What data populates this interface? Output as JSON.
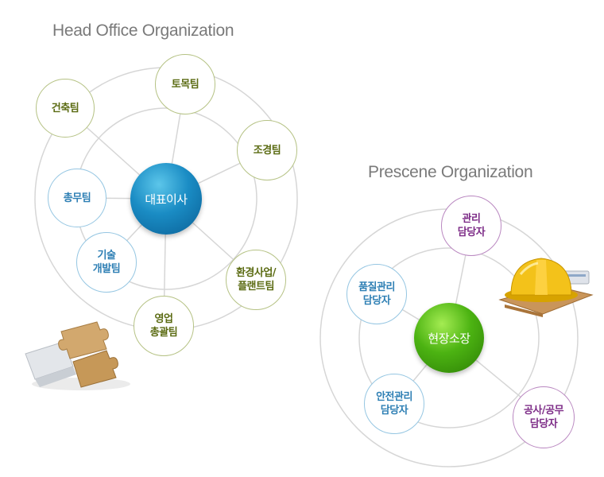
{
  "head_office": {
    "title": "Head Office Organization",
    "center": "대표이사",
    "nodes": {
      "architecture": "건축팀",
      "civil": "토목팀",
      "landscape": "조경팀",
      "general_affairs": "총무팀",
      "tech_dev": "기술\n개발팀",
      "environment_plant": "환경사업/\n플랜트팀",
      "sales": "영업\n총괄팀"
    }
  },
  "prescene": {
    "title": "Prescene Organization",
    "center": "현장소장",
    "nodes": {
      "management": "관리\n담당자",
      "quality": "품질관리\n담당자",
      "safety": "안전관리\n담당자",
      "construction": "공사/공무\n담당자"
    }
  },
  "colors": {
    "olive": "#5b6b12",
    "sky": "#2e7fb4",
    "plum": "#7d2c87",
    "ceo_blue": "#1a8cc4",
    "site_green": "#4cb312"
  },
  "icons": [
    "puzzle-pieces-icon",
    "hard-hat-icon"
  ]
}
